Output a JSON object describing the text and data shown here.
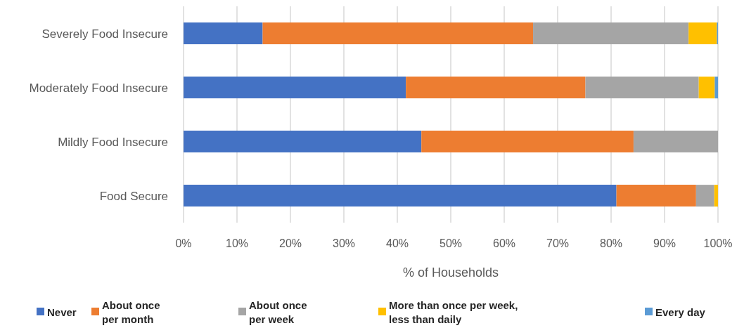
{
  "chart_data": {
    "type": "bar",
    "orientation": "horizontal",
    "stacked": true,
    "categories": [
      "Severely Food Insecure",
      "Moderately Food Insecure",
      "Mildly Food Insecure",
      "Food Secure"
    ],
    "series": [
      {
        "name": "Never",
        "color": "#4472c4",
        "values": [
          14.8,
          41.6,
          44.5,
          81.0
        ]
      },
      {
        "name": "About once per month",
        "color": "#ed7d31",
        "values": [
          50.6,
          33.6,
          39.7,
          14.9
        ]
      },
      {
        "name": "About once per week",
        "color": "#a5a5a5",
        "values": [
          29.1,
          21.2,
          15.8,
          3.4
        ]
      },
      {
        "name": "More than once per week, less than daily",
        "color": "#ffc000",
        "values": [
          5.3,
          3.0,
          0,
          0.7
        ]
      },
      {
        "name": "Every day",
        "color": "#5b9bd5",
        "values": [
          0.2,
          0.6,
          0,
          0
        ]
      }
    ],
    "xlabel": "% of Households",
    "xlim": [
      0,
      100
    ],
    "xticks": [
      {
        "value": 0,
        "label": "0%"
      },
      {
        "value": 10,
        "label": "10%"
      },
      {
        "value": 20,
        "label": "20%"
      },
      {
        "value": 30,
        "label": "30%"
      },
      {
        "value": 40,
        "label": "40%"
      },
      {
        "value": 50,
        "label": "50%"
      },
      {
        "value": 60,
        "label": "60%"
      },
      {
        "value": 70,
        "label": "70%"
      },
      {
        "value": 80,
        "label": "80%"
      },
      {
        "value": 90,
        "label": "90%"
      },
      {
        "value": 100,
        "label": "100%"
      }
    ],
    "grid": "x",
    "legend": "bottom"
  }
}
